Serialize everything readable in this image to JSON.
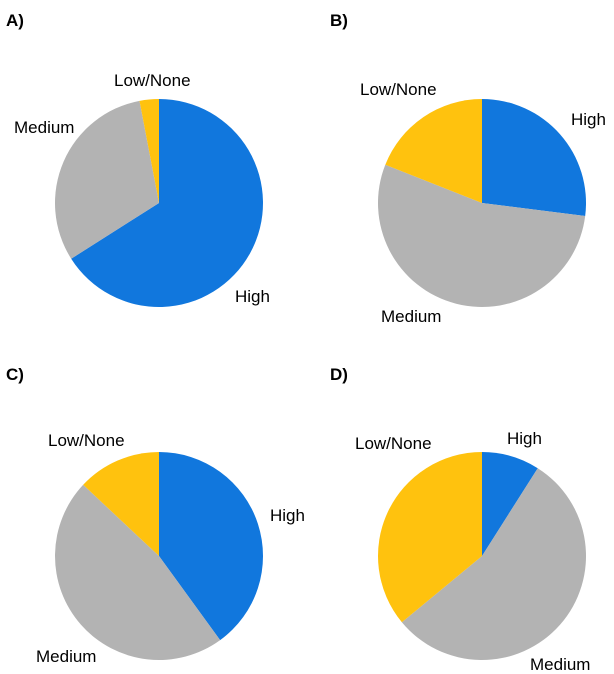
{
  "colors": {
    "High": "#1177dd",
    "Medium": "#b3b3b3",
    "Low/None": "#ffc20e"
  },
  "chart_data": [
    {
      "type": "pie",
      "panel": "A)",
      "start": "12 o'clock",
      "direction": "clockwise",
      "slices": [
        {
          "label": "High",
          "value": 66
        },
        {
          "label": "Medium",
          "value": 31
        },
        {
          "label": "Low/None",
          "value": 3
        }
      ]
    },
    {
      "type": "pie",
      "panel": "B)",
      "start": "12 o'clock",
      "direction": "clockwise",
      "slices": [
        {
          "label": "High",
          "value": 27
        },
        {
          "label": "Medium",
          "value": 54
        },
        {
          "label": "Low/None",
          "value": 19
        }
      ]
    },
    {
      "type": "pie",
      "panel": "C)",
      "start": "12 o'clock",
      "direction": "clockwise",
      "slices": [
        {
          "label": "High",
          "value": 40
        },
        {
          "label": "Medium",
          "value": 47
        },
        {
          "label": "Low/None",
          "value": 13
        }
      ]
    },
    {
      "type": "pie",
      "panel": "D)",
      "start": "12 o'clock",
      "direction": "clockwise",
      "slices": [
        {
          "label": "High",
          "value": 9
        },
        {
          "label": "Medium",
          "value": 55
        },
        {
          "label": "Low/None",
          "value": 36
        }
      ]
    }
  ]
}
